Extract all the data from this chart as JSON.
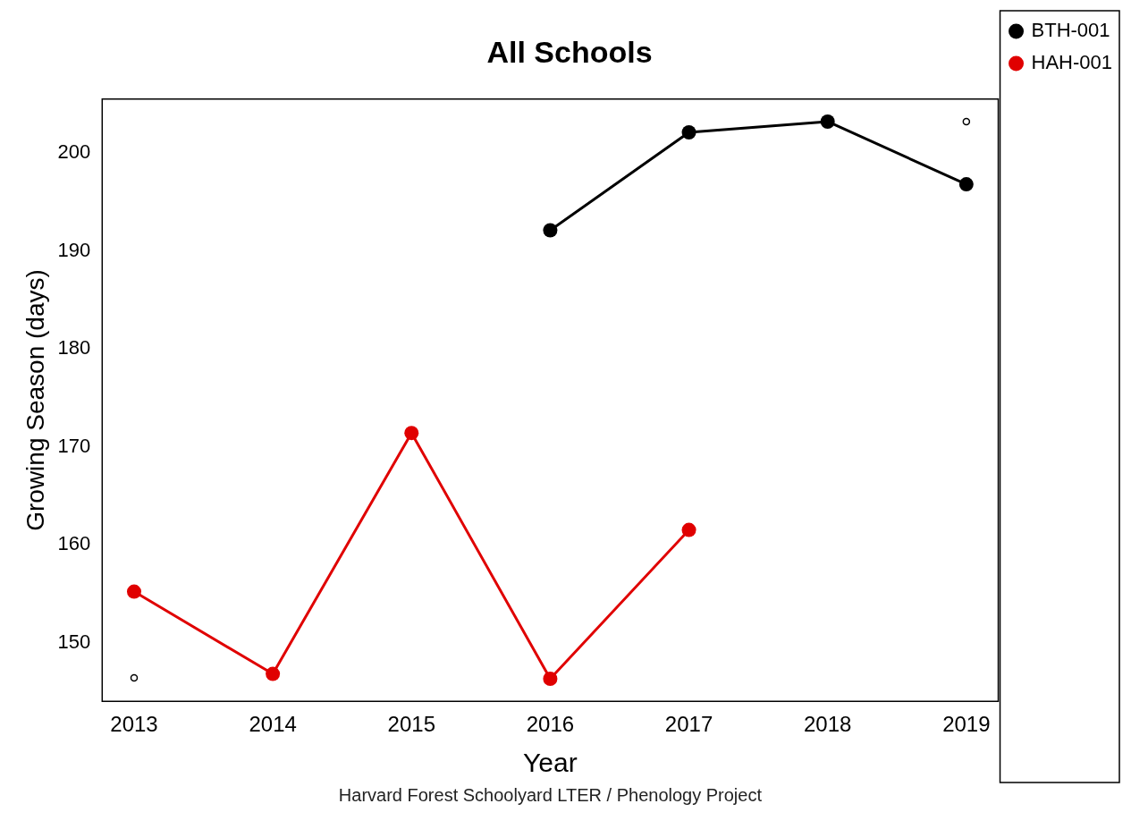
{
  "chart_data": {
    "type": "line",
    "title": "All Schools",
    "xlabel": "Year",
    "ylabel": "Growing Season (days)",
    "annotations": [
      "Harvard Forest Schoolyard LTER / Phenology Project"
    ],
    "series": [
      {
        "name": "BTH-001",
        "color": "#000000",
        "x": [
          2016,
          2017,
          2018,
          2019
        ],
        "values": [
          192.1,
          202.1,
          203.2,
          196.8
        ]
      },
      {
        "name": "HAH-001",
        "color": "#e00000",
        "x": [
          2013,
          2014,
          2015,
          2016,
          2017
        ],
        "values": [
          155.2,
          146.8,
          171.4,
          146.3,
          161.5
        ]
      },
      {
        "type": "scatter",
        "color": "#000000",
        "x": [
          2013,
          2019
        ],
        "values": [
          146.4,
          203.2
        ]
      }
    ],
    "xlim": [
      2012.77,
      2019.23
    ],
    "ylim": [
      144,
      205.5
    ],
    "xticks": [
      2013,
      2014,
      2015,
      2016,
      2017,
      2018,
      2019
    ],
    "yticks": [
      150,
      160,
      170,
      180,
      190,
      200
    ],
    "grid": false,
    "legend": "right",
    "marker": "circle",
    "line_style": "solid"
  }
}
